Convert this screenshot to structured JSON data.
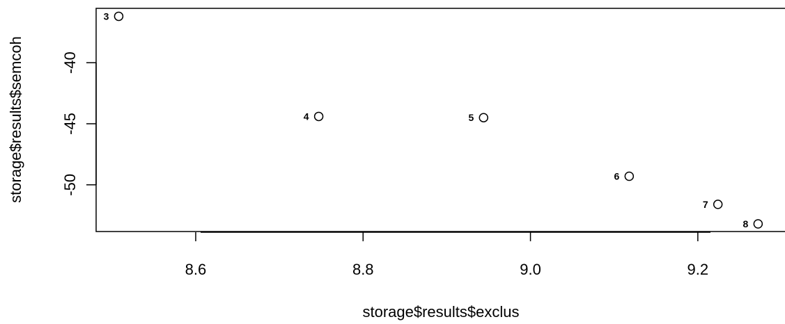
{
  "chart_data": {
    "type": "scatter",
    "xlabel": "storage$results$exclus",
    "ylabel": "storage$results$semcoh",
    "xlim": [
      8.481,
      9.305
    ],
    "ylim": [
      -53.826,
      -35.548
    ],
    "x_ticks": [
      8.6,
      8.8,
      9.0,
      9.2
    ],
    "x_tick_labels": [
      "8.6",
      "8.8",
      "9.0",
      "9.2"
    ],
    "y_ticks": [
      -40,
      -45,
      -50
    ],
    "y_tick_labels": [
      "-40",
      "-45",
      "-50"
    ],
    "grid": false,
    "points": [
      {
        "x": 8.508,
        "y": -36.2,
        "label": "3"
      },
      {
        "x": 8.747,
        "y": -44.4,
        "label": "4"
      },
      {
        "x": 8.944,
        "y": -44.5,
        "label": "5"
      },
      {
        "x": 9.118,
        "y": -49.3,
        "label": "6"
      },
      {
        "x": 9.224,
        "y": -51.6,
        "label": "7"
      },
      {
        "x": 9.272,
        "y": -53.2,
        "label": "8"
      }
    ]
  }
}
